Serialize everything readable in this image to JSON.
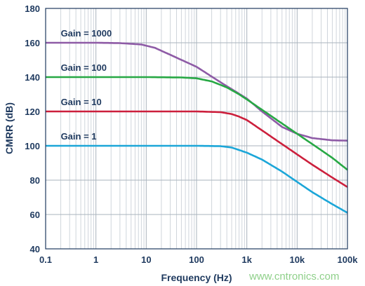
{
  "chart_data": {
    "type": "line",
    "xlabel": "Frequency (Hz)",
    "ylabel": "CMRR (dB)",
    "xscale": "log",
    "xlim": [
      0.1,
      100000
    ],
    "ylim": [
      40,
      180
    ],
    "x_ticks": [
      "0.1",
      "1",
      "10",
      "100",
      "1k",
      "10k",
      "100k"
    ],
    "y_ticks": [
      40,
      60,
      80,
      100,
      120,
      140,
      160,
      180
    ],
    "grid": true,
    "series": [
      {
        "name": "Gain = 1000",
        "color": "#8e5ba6",
        "x": [
          0.1,
          1,
          3,
          8,
          15,
          30,
          100,
          300,
          1000,
          2000,
          5000,
          10000,
          20000,
          50000,
          100000
        ],
        "y": [
          160,
          160,
          159.8,
          159,
          157,
          153,
          146,
          137,
          127.5,
          120,
          111,
          107,
          104.5,
          103.2,
          103
        ]
      },
      {
        "name": "Gain = 100",
        "color": "#27a844",
        "x": [
          0.1,
          1,
          10,
          50,
          100,
          200,
          400,
          700,
          1000,
          2000,
          5000,
          10000,
          20000,
          50000,
          100000
        ],
        "y": [
          140,
          140,
          140,
          139.8,
          139.3,
          137.5,
          134,
          130,
          127,
          121,
          113,
          107,
          101,
          93,
          86
        ]
      },
      {
        "name": "Gain = 10",
        "color": "#cc1f3c",
        "x": [
          0.1,
          1,
          10,
          100,
          300,
          500,
          700,
          1000,
          2000,
          5000,
          10000,
          20000,
          50000,
          100000
        ],
        "y": [
          120,
          120,
          120,
          120,
          119.6,
          118.5,
          117,
          115,
          109,
          101,
          95,
          89,
          81.5,
          76
        ]
      },
      {
        "name": "Gain = 1",
        "color": "#1ba6d8",
        "x": [
          0.1,
          1,
          10,
          100,
          300,
          500,
          1000,
          2000,
          5000,
          10000,
          20000,
          50000,
          100000
        ],
        "y": [
          100,
          100,
          100,
          100,
          99.8,
          99,
          96,
          92,
          85,
          79,
          73,
          66,
          61
        ]
      }
    ]
  },
  "watermark": "www.cntronics.com"
}
